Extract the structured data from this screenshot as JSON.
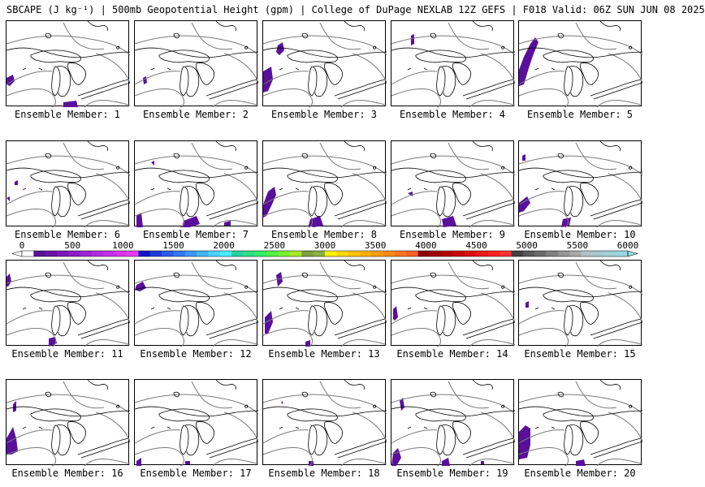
{
  "header": {
    "title": "SBCAPE (J kg⁻¹) | 500mb Geopotential Height (gpm) | College of DuPage NEXLAB 12Z GEFS | F018 Valid: 06Z SUN JUN 08 2025"
  },
  "colorbar": {
    "ticks": [
      "0",
      "500",
      "1000",
      "1500",
      "2000",
      "2500",
      "3000",
      "3500",
      "4000",
      "4500",
      "5000",
      "5500",
      "6000"
    ],
    "tick_values": [
      0,
      500,
      1000,
      1500,
      2000,
      2500,
      3000,
      3500,
      4000,
      4500,
      5000,
      5500,
      6000
    ],
    "colors": [
      "#ffffff",
      "#5a1096",
      "#6a14a8",
      "#7a18b8",
      "#8c1ec8",
      "#9e24d6",
      "#b02ae0",
      "#c42ee6",
      "#d834ea",
      "#e83cee",
      "#1414c8",
      "#1e3cd8",
      "#2a5ae6",
      "#3478f0",
      "#3c96f8",
      "#44b4fc",
      "#48d2fc",
      "#48ecfa",
      "#24d2a0",
      "#2ce082",
      "#34ec64",
      "#50f040",
      "#7cf030",
      "#a8e82a",
      "#7ea03c",
      "#8cb044",
      "#f8f000",
      "#fad800",
      "#fcc400",
      "#fcb000",
      "#fc9c10",
      "#f88818",
      "#f87420",
      "#f46028",
      "#8c0000",
      "#a00000",
      "#b40000",
      "#c80808",
      "#dc1010",
      "#ec1818",
      "#fc2020",
      "#fc3030",
      "#404040",
      "#585858",
      "#6c6c6c",
      "#808080",
      "#949494",
      "#a8a8a8",
      "#b4c0c8",
      "#a8c8d0",
      "#a0d0d8",
      "#98d8e0"
    ]
  },
  "members": [
    {
      "label": "Ensemble Member: 1"
    },
    {
      "label": "Ensemble Member: 2"
    },
    {
      "label": "Ensemble Member: 3"
    },
    {
      "label": "Ensemble Member: 4"
    },
    {
      "label": "Ensemble Member: 5"
    },
    {
      "label": "Ensemble Member: 6"
    },
    {
      "label": "Ensemble Member: 7"
    },
    {
      "label": "Ensemble Member: 8"
    },
    {
      "label": "Ensemble Member: 9"
    },
    {
      "label": "Ensemble Member: 10"
    },
    {
      "label": "Ensemble Member: 11"
    },
    {
      "label": "Ensemble Member: 12"
    },
    {
      "label": "Ensemble Member: 13"
    },
    {
      "label": "Ensemble Member: 14"
    },
    {
      "label": "Ensemble Member: 15"
    },
    {
      "label": "Ensemble Member: 16"
    },
    {
      "label": "Ensemble Member: 17"
    },
    {
      "label": "Ensemble Member: 18"
    },
    {
      "label": "Ensemble Member: 19"
    },
    {
      "label": "Ensemble Member: 20"
    }
  ],
  "colors": {
    "cape_fill": "#5a0f9c",
    "coastline": "#000000",
    "height_contour": "#7a7a7a"
  }
}
